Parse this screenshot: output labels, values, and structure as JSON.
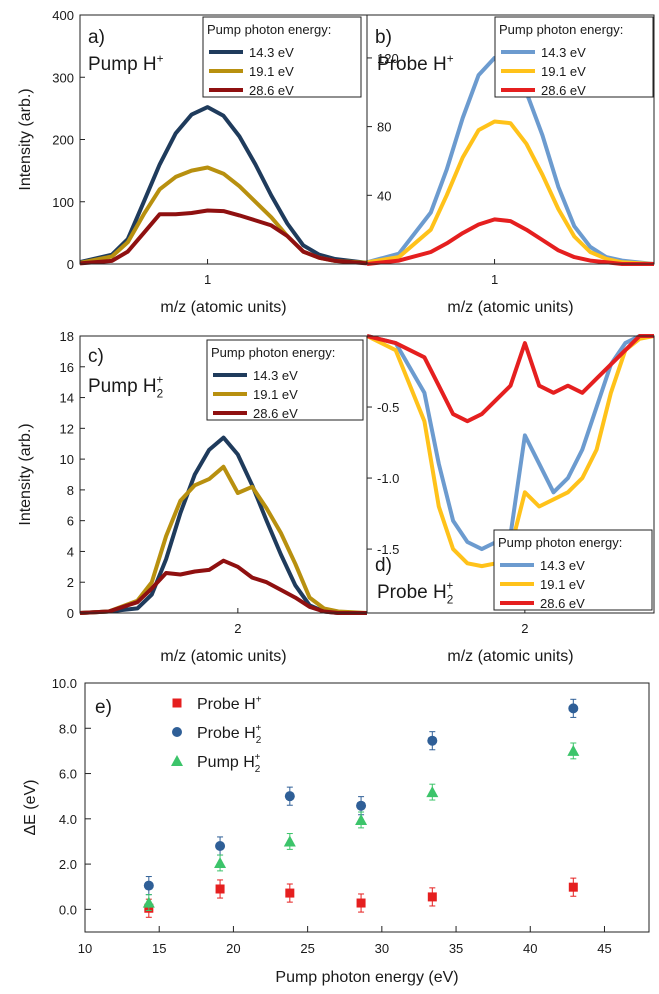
{
  "chart_data": [
    {
      "type": "line",
      "panel_label": "a)",
      "annotation_main": "Pump H",
      "annotation_sup": "+",
      "legend_title": "Pump photon energy:",
      "ylabel": "Intensity (arb.)",
      "xlabel": "m/z (atomic units)",
      "x_ticks": [
        1
      ],
      "y_ticks": [
        0,
        100,
        200,
        300,
        400
      ],
      "xlim": [
        0.6,
        1.5
      ],
      "ylim": [
        0,
        400
      ],
      "x": [
        0.6,
        0.7,
        0.75,
        0.8,
        0.85,
        0.9,
        0.95,
        1.0,
        1.05,
        1.1,
        1.15,
        1.2,
        1.25,
        1.3,
        1.35,
        1.4,
        1.5
      ],
      "series": [
        {
          "name": "14.3 eV",
          "color": "#1f3b5c",
          "values": [
            3,
            15,
            40,
            100,
            160,
            210,
            240,
            252,
            238,
            205,
            160,
            110,
            65,
            30,
            15,
            8,
            2
          ]
        },
        {
          "name": "19.1 eV",
          "color": "#b8900f",
          "values": [
            2,
            12,
            35,
            80,
            120,
            140,
            150,
            155,
            145,
            125,
            100,
            75,
            45,
            20,
            10,
            5,
            2
          ]
        },
        {
          "name": "28.6 eV",
          "color": "#8f1010",
          "values": [
            1,
            5,
            20,
            50,
            80,
            80,
            82,
            86,
            85,
            78,
            70,
            62,
            45,
            20,
            10,
            5,
            1
          ]
        }
      ]
    },
    {
      "type": "line",
      "panel_label": "b)",
      "annotation_main": "Probe H",
      "annotation_sup": "+",
      "legend_title": "Pump photon energy:",
      "xlabel": "m/z (atomic units)",
      "x_ticks": [
        1
      ],
      "y_ticks": [
        40,
        80,
        120
      ],
      "xlim": [
        0.6,
        1.5
      ],
      "ylim": [
        0,
        145
      ],
      "x": [
        0.6,
        0.7,
        0.8,
        0.85,
        0.9,
        0.95,
        1.0,
        1.05,
        1.1,
        1.15,
        1.2,
        1.25,
        1.3,
        1.35,
        1.4,
        1.5
      ],
      "series": [
        {
          "name": "14.3 eV",
          "color": "#6c9bcf",
          "values": [
            1,
            6,
            30,
            55,
            85,
            110,
            120,
            118,
            100,
            75,
            45,
            22,
            10,
            4,
            2,
            0
          ]
        },
        {
          "name": "19.1 eV",
          "color": "#ffc21a",
          "values": [
            1,
            4,
            20,
            40,
            62,
            78,
            83,
            82,
            70,
            52,
            32,
            16,
            7,
            3,
            1,
            0
          ]
        },
        {
          "name": "28.6 eV",
          "color": "#e51f1f",
          "values": [
            0,
            2,
            7,
            12,
            18,
            23,
            26,
            25,
            20,
            14,
            8,
            4,
            2,
            1,
            0,
            0
          ]
        }
      ]
    },
    {
      "type": "line",
      "panel_label": "c)",
      "annotation_main": "Pump H",
      "annotation_sub": "2",
      "annotation_sup": "+",
      "legend_title": "Pump photon energy:",
      "ylabel": "Intensity (arb.)",
      "xlabel": "m/z (atomic units)",
      "x_ticks": [
        2
      ],
      "y_ticks": [
        0,
        2,
        4,
        6,
        8,
        10,
        12,
        14,
        16,
        18
      ],
      "xlim": [
        1.45,
        2.45
      ],
      "ylim": [
        0,
        18
      ],
      "x": [
        1.45,
        1.55,
        1.65,
        1.7,
        1.75,
        1.8,
        1.85,
        1.9,
        1.95,
        2.0,
        2.05,
        2.1,
        2.15,
        2.2,
        2.25,
        2.3,
        2.35,
        2.45
      ],
      "series": [
        {
          "name": "14.3 eV",
          "color": "#1f3b5c",
          "values": [
            0,
            0.1,
            0.3,
            1.2,
            3.5,
            6.5,
            9.0,
            10.6,
            11.4,
            10.3,
            8.3,
            6.0,
            3.8,
            1.8,
            0.5,
            0.1,
            0,
            0
          ]
        },
        {
          "name": "19.1 eV",
          "color": "#b8900f",
          "values": [
            0,
            0.1,
            0.8,
            2.0,
            5.0,
            7.3,
            8.3,
            8.7,
            9.5,
            7.8,
            8.2,
            6.8,
            5.2,
            3.2,
            1.0,
            0.3,
            0.1,
            0
          ]
        },
        {
          "name": "28.6 eV",
          "color": "#8f1010",
          "values": [
            0,
            0.1,
            0.7,
            1.6,
            2.6,
            2.5,
            2.7,
            2.8,
            3.4,
            3.0,
            2.3,
            2.0,
            1.5,
            1.0,
            0.4,
            0.1,
            0,
            0
          ]
        }
      ]
    },
    {
      "type": "line",
      "panel_label": "d)",
      "annotation_main": "Probe H",
      "annotation_sub": "2",
      "annotation_sup": "+",
      "legend_title": "Pump photon energy:",
      "xlabel": "m/z (atomic units)",
      "x_ticks": [
        2
      ],
      "y_ticks": [
        -1.5,
        -1.0,
        -0.5
      ],
      "y_tick_labels": [
        "-1.5",
        "-1.0",
        "-0.5"
      ],
      "xlim": [
        1.45,
        2.45
      ],
      "ylim": [
        -1.95,
        0
      ],
      "x": [
        1.45,
        1.55,
        1.65,
        1.7,
        1.75,
        1.8,
        1.85,
        1.9,
        1.95,
        2.0,
        2.05,
        2.1,
        2.15,
        2.2,
        2.25,
        2.3,
        2.35,
        2.4,
        2.45
      ],
      "series": [
        {
          "name": "14.3 eV",
          "color": "#6c9bcf",
          "values": [
            0,
            -0.05,
            -0.4,
            -0.9,
            -1.3,
            -1.45,
            -1.5,
            -1.45,
            -1.4,
            -0.7,
            -0.9,
            -1.1,
            -1.0,
            -0.8,
            -0.5,
            -0.2,
            -0.05,
            0,
            0
          ]
        },
        {
          "name": "19.1 eV",
          "color": "#ffc21a",
          "values": [
            0,
            -0.1,
            -0.6,
            -1.2,
            -1.5,
            -1.6,
            -1.62,
            -1.6,
            -1.5,
            -1.1,
            -1.2,
            -1.15,
            -1.1,
            -1.0,
            -0.8,
            -0.4,
            -0.1,
            -0.02,
            0
          ]
        },
        {
          "name": "28.6 eV",
          "color": "#e51f1f",
          "values": [
            0,
            -0.05,
            -0.15,
            -0.35,
            -0.55,
            -0.6,
            -0.55,
            -0.45,
            -0.35,
            -0.05,
            -0.35,
            -0.4,
            -0.35,
            -0.4,
            -0.3,
            -0.2,
            -0.1,
            0,
            0
          ]
        }
      ]
    },
    {
      "type": "scatter",
      "panel_label": "e)",
      "xlabel": "Pump photon energy (eV)",
      "ylabel": "ΔE (eV)",
      "xlim": [
        10,
        48
      ],
      "ylim": [
        -1.0,
        10.0
      ],
      "x_ticks": [
        10,
        15,
        20,
        25,
        30,
        35,
        40,
        45
      ],
      "y_ticks": [
        0,
        2,
        4,
        6,
        8,
        10
      ],
      "y_tick_labels": [
        "0.0",
        "2.0",
        "4.0",
        "6.0",
        "8.0",
        "10.0"
      ],
      "series": [
        {
          "name": "Probe H",
          "sup": "+",
          "marker": "square",
          "color": "#e51f1f",
          "x": [
            14.3,
            19.1,
            23.8,
            28.6,
            33.4,
            42.9
          ],
          "y": [
            0.05,
            0.9,
            0.72,
            0.28,
            0.55,
            0.98
          ],
          "err": [
            0.4,
            0.4,
            0.4,
            0.4,
            0.4,
            0.4
          ]
        },
        {
          "name": "Probe H",
          "sub": "2",
          "sup": "+",
          "marker": "circle",
          "color": "#2f5f97",
          "x": [
            14.3,
            19.1,
            23.8,
            28.6,
            33.4,
            42.9
          ],
          "y": [
            1.05,
            2.8,
            5.0,
            4.58,
            7.45,
            8.88
          ],
          "err": [
            0.4,
            0.4,
            0.4,
            0.4,
            0.4,
            0.4
          ]
        },
        {
          "name": "Pump H",
          "sub": "2",
          "sup": "+",
          "marker": "triangle",
          "color": "#3cc46a",
          "x": [
            14.3,
            19.1,
            23.8,
            28.6,
            33.4,
            42.9
          ],
          "y": [
            0.3,
            2.05,
            3.0,
            3.95,
            5.18,
            7.0
          ],
          "err": [
            0.35,
            0.35,
            0.35,
            0.35,
            0.35,
            0.35
          ]
        }
      ]
    }
  ]
}
